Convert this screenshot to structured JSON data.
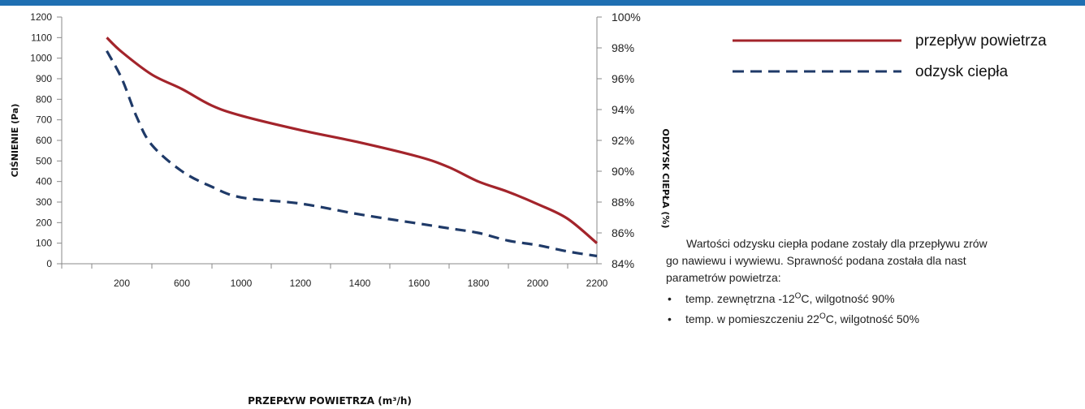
{
  "chart_data": {
    "type": "line",
    "xlabel": "PRZEPŁYW POWIETRZA (m³/h)",
    "ylabel": "CIŚNIENIE (Pa)",
    "y2label": "ODZYSK CIEPŁA (%)",
    "x_ticks": [
      "200",
      "600",
      "1000",
      "1200",
      "1400",
      "1600",
      "1800",
      "2000",
      "2200"
    ],
    "ylim": [
      0,
      1200
    ],
    "y_ticks": [
      "0",
      "100",
      "200",
      "300",
      "400",
      "500",
      "600",
      "700",
      "800",
      "900",
      "1000",
      "1100",
      "1200"
    ],
    "y2lim": [
      84,
      100
    ],
    "y2_ticks": [
      "84%",
      "86%",
      "88%",
      "90%",
      "92%",
      "94%",
      "96%",
      "98%",
      "100%"
    ],
    "grid": false,
    "legend_position": "top-right",
    "series": [
      {
        "name": "przepływ powietrza",
        "axis": "left",
        "color": "#a3242b",
        "style": "solid",
        "points": [
          [
            100,
            1100
          ],
          [
            200,
            1030
          ],
          [
            400,
            920
          ],
          [
            600,
            850
          ],
          [
            800,
            770
          ],
          [
            1000,
            720
          ],
          [
            1200,
            650
          ],
          [
            1400,
            590
          ],
          [
            1600,
            520
          ],
          [
            1700,
            470
          ],
          [
            1800,
            400
          ],
          [
            1900,
            350
          ],
          [
            2000,
            290
          ],
          [
            2100,
            220
          ],
          [
            2200,
            100
          ]
        ]
      },
      {
        "name": "odzysk ciepła",
        "axis": "right",
        "color": "#1f3a68",
        "style": "dashed",
        "points": [
          [
            100,
            97.8
          ],
          [
            200,
            96.0
          ],
          [
            300,
            93.5
          ],
          [
            400,
            91.7
          ],
          [
            600,
            90.0
          ],
          [
            800,
            89.0
          ],
          [
            1000,
            88.3
          ],
          [
            1200,
            87.9
          ],
          [
            1400,
            87.2
          ],
          [
            1600,
            86.6
          ],
          [
            1700,
            86.3
          ],
          [
            1800,
            86.0
          ],
          [
            1900,
            85.5
          ],
          [
            2000,
            85.2
          ],
          [
            2100,
            84.8
          ],
          [
            2200,
            84.5
          ]
        ]
      }
    ]
  },
  "note": {
    "line1": "Wartości odzysku ciepła podane zostały dla przepływu zrów",
    "line2": "go nawiewu i wywiewu. Sprawność podana została dla nast",
    "line3": "parametrów powietrza:",
    "bullet_symbol": "•",
    "bullets": [
      {
        "before": "temp. zewnętrzna -12",
        "sup": "O",
        "after": "C, wilgotność 90%"
      },
      {
        "before": "temp. w pomieszczeniu 22",
        "sup": "O",
        "after": "C, wilgotność 50%"
      }
    ]
  }
}
